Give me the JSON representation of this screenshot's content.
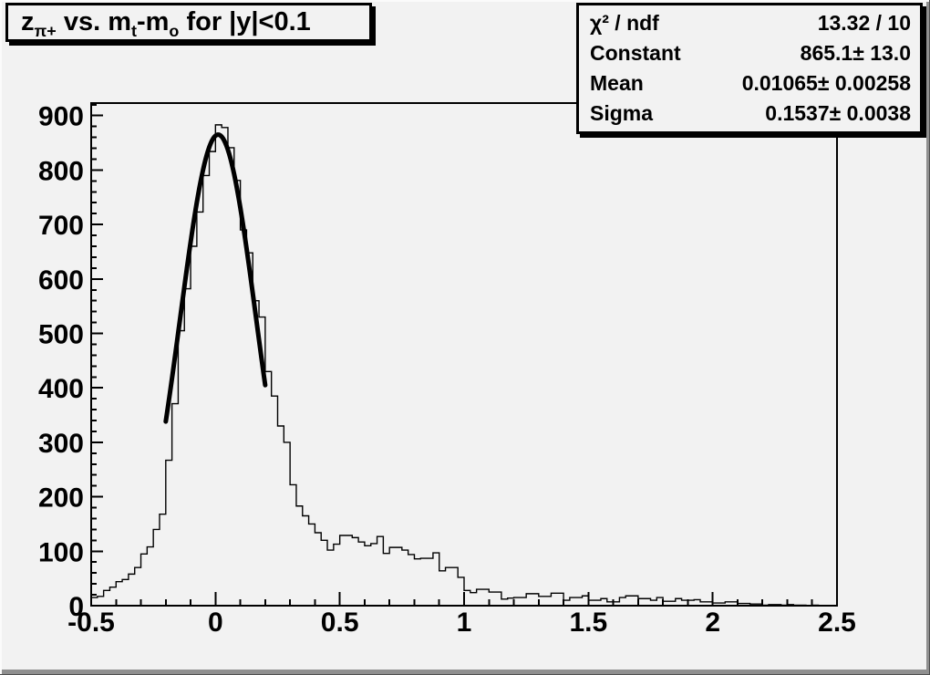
{
  "canvas": {
    "background": "#f2f2f2",
    "foreground": "#000000"
  },
  "title_box": {
    "segments": [
      {
        "text": "z"
      },
      {
        "text": "π+",
        "sub": true
      },
      {
        "text": " vs. m"
      },
      {
        "text": "t",
        "sub": true
      },
      {
        "text": "-m"
      },
      {
        "text": "o",
        "sub": true
      },
      {
        "text": " for |y|<0.1"
      }
    ]
  },
  "stats_box": {
    "rows": [
      {
        "label": "χ² / ndf",
        "value": "13.32 / 10"
      },
      {
        "label": "Constant",
        "value": "865.1± 13.0"
      },
      {
        "label": "Mean",
        "value": "0.01065± 0.00258"
      },
      {
        "label": "Sigma",
        "value": "0.1537± 0.0038"
      }
    ]
  },
  "chart_data": {
    "type": "bar",
    "style": "root-step-histogram",
    "title": "z_{π+} vs. m_{t}-m_{o} for |y|<0.1",
    "xlabel": "",
    "ylabel": "",
    "grid": false,
    "legend_position": "none",
    "xlim": [
      -0.5,
      2.5
    ],
    "ylim": [
      0,
      923
    ],
    "x_major_ticks": [
      -0.5,
      0,
      0.5,
      1,
      1.5,
      2,
      2.5
    ],
    "x_tick_labels": [
      "-0.5",
      "0",
      "0.5",
      "1",
      "1.5",
      "2",
      "2.5"
    ],
    "x_minor_step": 0.1,
    "y_major_ticks": [
      0,
      100,
      200,
      300,
      400,
      500,
      600,
      700,
      800,
      900
    ],
    "y_tick_labels": [
      "0",
      "100",
      "200",
      "300",
      "400",
      "500",
      "600",
      "700",
      "800",
      "900"
    ],
    "y_minor_step": 20,
    "bin_start": -0.5,
    "bin_width": 0.025,
    "bin_values": [
      15,
      17,
      28,
      34,
      44,
      48,
      58,
      70,
      95,
      108,
      140,
      168,
      267,
      371,
      505,
      582,
      660,
      723,
      790,
      834,
      883,
      878,
      841,
      781,
      690,
      648,
      560,
      530,
      430,
      385,
      330,
      300,
      222,
      183,
      165,
      150,
      134,
      120,
      102,
      113,
      129,
      129,
      125,
      117,
      110,
      114,
      127,
      96,
      107,
      107,
      102,
      94,
      86,
      87,
      87,
      97,
      64,
      70,
      70,
      52,
      28,
      24,
      30,
      30,
      25,
      25,
      12,
      14,
      15,
      15,
      22,
      22,
      17,
      17,
      23,
      23,
      10,
      15,
      15,
      18,
      10,
      10,
      13,
      7,
      7,
      15,
      18,
      18,
      13,
      13,
      10,
      15,
      8,
      8,
      13,
      10,
      10,
      11,
      7,
      7,
      5,
      5,
      7,
      7,
      4,
      4,
      3,
      3,
      1,
      2,
      2,
      1,
      2,
      1,
      1,
      0,
      1,
      0,
      0,
      0
    ],
    "fit": {
      "type": "gaussian",
      "chi2": 13.32,
      "ndf": 10,
      "constant": 865.1,
      "constant_err": 13.0,
      "mean": 0.01065,
      "mean_err": 0.00258,
      "sigma": 0.1537,
      "sigma_err": 0.0038,
      "draw_range": [
        -0.2,
        0.2
      ]
    },
    "line_color": "#000000",
    "fit_color": "#000000"
  }
}
